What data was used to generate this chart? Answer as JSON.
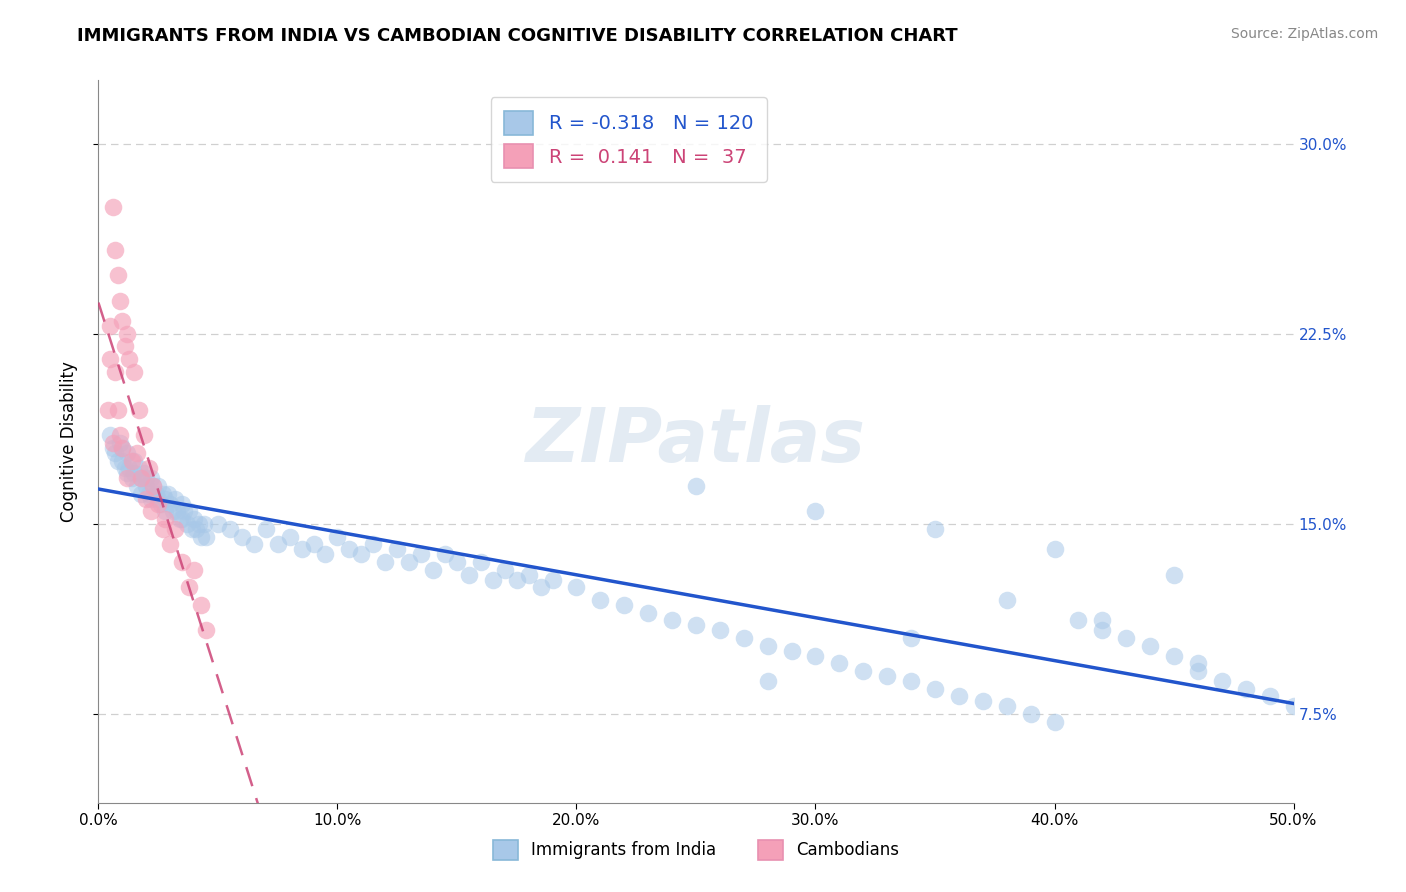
{
  "title": "IMMIGRANTS FROM INDIA VS CAMBODIAN COGNITIVE DISABILITY CORRELATION CHART",
  "source": "Source: ZipAtlas.com",
  "ylabel": "Cognitive Disability",
  "xlim": [
    0.0,
    0.5
  ],
  "ylim": [
    0.04,
    0.325
  ],
  "xtick_vals": [
    0.0,
    0.1,
    0.2,
    0.3,
    0.4,
    0.5
  ],
  "xticklabels": [
    "0.0%",
    "10.0%",
    "20.0%",
    "30.0%",
    "40.0%",
    "50.0%"
  ],
  "ytick_vals": [
    0.075,
    0.15,
    0.225,
    0.3
  ],
  "yticklabels": [
    "7.5%",
    "15.0%",
    "22.5%",
    "30.0%"
  ],
  "legend_r_india": "-0.318",
  "legend_n_india": "120",
  "legend_r_camb": "0.141",
  "legend_n_camb": "37",
  "blue_scatter": "#a8c8e8",
  "pink_scatter": "#f4a0b8",
  "blue_line": "#2255cc",
  "pink_line": "#cc4477",
  "grid_color": "#d0d0d0",
  "title_fontsize": 13,
  "source_fontsize": 10,
  "tick_fontsize": 11,
  "ylabel_fontsize": 12,
  "legend_fontsize": 14,
  "watermark_text": "ZIPatlas",
  "india_r": -0.318,
  "india_n": 120,
  "camb_r": 0.141,
  "camb_n": 37,
  "india_x": [
    0.005,
    0.006,
    0.007,
    0.008,
    0.009,
    0.01,
    0.01,
    0.011,
    0.012,
    0.012,
    0.013,
    0.014,
    0.015,
    0.015,
    0.016,
    0.017,
    0.018,
    0.018,
    0.019,
    0.02,
    0.02,
    0.021,
    0.022,
    0.022,
    0.023,
    0.024,
    0.025,
    0.025,
    0.026,
    0.027,
    0.028,
    0.028,
    0.029,
    0.03,
    0.031,
    0.032,
    0.033,
    0.034,
    0.035,
    0.035,
    0.036,
    0.037,
    0.038,
    0.039,
    0.04,
    0.041,
    0.042,
    0.043,
    0.044,
    0.045,
    0.05,
    0.055,
    0.06,
    0.065,
    0.07,
    0.075,
    0.08,
    0.085,
    0.09,
    0.095,
    0.1,
    0.105,
    0.11,
    0.115,
    0.12,
    0.125,
    0.13,
    0.135,
    0.14,
    0.145,
    0.15,
    0.155,
    0.16,
    0.165,
    0.17,
    0.175,
    0.18,
    0.185,
    0.19,
    0.2,
    0.21,
    0.22,
    0.23,
    0.24,
    0.25,
    0.26,
    0.27,
    0.28,
    0.29,
    0.3,
    0.31,
    0.32,
    0.33,
    0.34,
    0.35,
    0.36,
    0.37,
    0.38,
    0.39,
    0.4,
    0.41,
    0.42,
    0.43,
    0.44,
    0.45,
    0.46,
    0.47,
    0.48,
    0.49,
    0.5,
    0.25,
    0.3,
    0.35,
    0.4,
    0.45,
    0.38,
    0.42,
    0.34,
    0.46,
    0.28
  ],
  "india_y": [
    0.185,
    0.18,
    0.178,
    0.175,
    0.182,
    0.175,
    0.18,
    0.172,
    0.178,
    0.17,
    0.172,
    0.168,
    0.175,
    0.17,
    0.165,
    0.172,
    0.168,
    0.162,
    0.17,
    0.165,
    0.168,
    0.162,
    0.168,
    0.16,
    0.165,
    0.162,
    0.16,
    0.165,
    0.158,
    0.162,
    0.16,
    0.155,
    0.162,
    0.158,
    0.155,
    0.16,
    0.155,
    0.152,
    0.158,
    0.152,
    0.155,
    0.15,
    0.155,
    0.148,
    0.152,
    0.148,
    0.15,
    0.145,
    0.15,
    0.145,
    0.15,
    0.148,
    0.145,
    0.142,
    0.148,
    0.142,
    0.145,
    0.14,
    0.142,
    0.138,
    0.145,
    0.14,
    0.138,
    0.142,
    0.135,
    0.14,
    0.135,
    0.138,
    0.132,
    0.138,
    0.135,
    0.13,
    0.135,
    0.128,
    0.132,
    0.128,
    0.13,
    0.125,
    0.128,
    0.125,
    0.12,
    0.118,
    0.115,
    0.112,
    0.11,
    0.108,
    0.105,
    0.102,
    0.1,
    0.098,
    0.095,
    0.092,
    0.09,
    0.088,
    0.085,
    0.082,
    0.08,
    0.078,
    0.075,
    0.072,
    0.112,
    0.108,
    0.105,
    0.102,
    0.098,
    0.092,
    0.088,
    0.085,
    0.082,
    0.078,
    0.165,
    0.155,
    0.148,
    0.14,
    0.13,
    0.12,
    0.112,
    0.105,
    0.095,
    0.088
  ],
  "camb_x": [
    0.004,
    0.005,
    0.005,
    0.006,
    0.006,
    0.007,
    0.007,
    0.008,
    0.008,
    0.009,
    0.009,
    0.01,
    0.01,
    0.011,
    0.012,
    0.012,
    0.013,
    0.014,
    0.015,
    0.016,
    0.017,
    0.018,
    0.019,
    0.02,
    0.021,
    0.022,
    0.023,
    0.025,
    0.027,
    0.028,
    0.03,
    0.032,
    0.035,
    0.038,
    0.04,
    0.043,
    0.045
  ],
  "camb_y": [
    0.195,
    0.215,
    0.228,
    0.182,
    0.275,
    0.21,
    0.258,
    0.195,
    0.248,
    0.185,
    0.238,
    0.18,
    0.23,
    0.22,
    0.225,
    0.168,
    0.215,
    0.175,
    0.21,
    0.178,
    0.195,
    0.168,
    0.185,
    0.16,
    0.172,
    0.155,
    0.165,
    0.158,
    0.148,
    0.152,
    0.142,
    0.148,
    0.135,
    0.125,
    0.132,
    0.118,
    0.108
  ]
}
